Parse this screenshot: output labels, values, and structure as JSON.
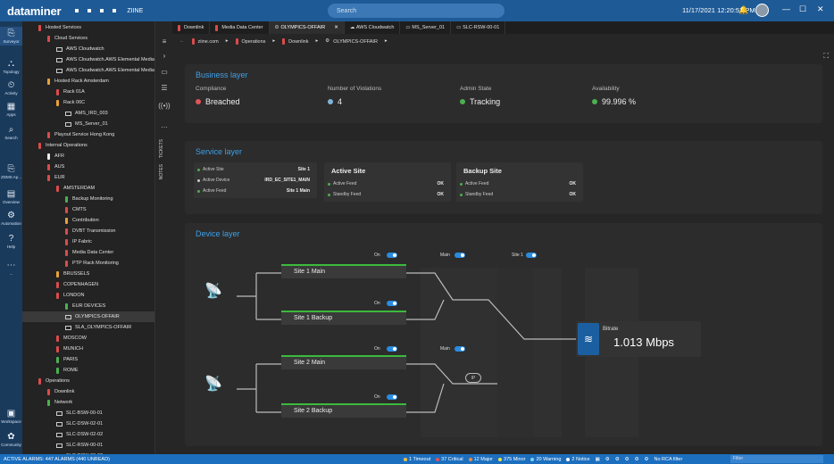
{
  "titlebar": {
    "logo": "dataminer",
    "app_name": "ZIINE",
    "search_placeholder": "Search",
    "clock": "11/17/2021 12:20:53 PM"
  },
  "leftbar": {
    "items": [
      {
        "label": "Surveyor",
        "icon": "surveyor-icon"
      },
      {
        "label": "Topology",
        "icon": "topology-icon"
      },
      {
        "label": "Activity",
        "icon": "activity-icon"
      },
      {
        "label": "Apps",
        "icon": "apps-icon"
      },
      {
        "label": "Search",
        "icon": "search-icon"
      },
      {
        "label": "ZDMS Ap...",
        "icon": "app-icon"
      },
      {
        "label": "Overview",
        "icon": "overview-icon"
      },
      {
        "label": "Automation",
        "icon": "automation-icon"
      },
      {
        "label": "Help",
        "icon": "help-icon"
      },
      {
        "label": "...",
        "icon": "more-icon"
      },
      {
        "label": "Workspace",
        "icon": "workspace-icon"
      },
      {
        "label": "Community",
        "icon": "community-icon"
      }
    ]
  },
  "tree": {
    "rows": [
      {
        "label": "Hosted Services",
        "indent": 1,
        "color": "#d94c4c",
        "kind": "view"
      },
      {
        "label": "Cloud Services",
        "indent": 2,
        "color": "#d94c4c",
        "kind": "view"
      },
      {
        "label": "AWS Cloudwatch",
        "indent": 3,
        "color": "",
        "kind": "element"
      },
      {
        "label": "AWS Cloudwatch.AWS Elemental Media",
        "indent": 3,
        "color": "",
        "kind": "element"
      },
      {
        "label": "AWS Cloudwatch.AWS Elemental Media",
        "indent": 3,
        "color": "",
        "kind": "element"
      },
      {
        "label": "Hosted Rack Amsterdam",
        "indent": 2,
        "color": "#e6a23c",
        "kind": "view"
      },
      {
        "label": "Rack 01A",
        "indent": 3,
        "color": "#d94c4c",
        "kind": "view"
      },
      {
        "label": "Rack 06C",
        "indent": 3,
        "color": "#e6a23c",
        "kind": "view"
      },
      {
        "label": "AMS_IRD_003",
        "indent": 4,
        "color": "",
        "kind": "element"
      },
      {
        "label": "MS_Server_01",
        "indent": 4,
        "color": "",
        "kind": "element"
      },
      {
        "label": "Playout Service Hong Kong",
        "indent": 2,
        "color": "#d94c4c",
        "kind": "view"
      },
      {
        "label": "Internal Operations",
        "indent": 1,
        "color": "#d94c4c",
        "kind": "view"
      },
      {
        "label": "AFR",
        "indent": 2,
        "color": "#eeeeee",
        "kind": "view"
      },
      {
        "label": "AUS",
        "indent": 2,
        "color": "#d94c4c",
        "kind": "view"
      },
      {
        "label": "EUR",
        "indent": 2,
        "color": "#d94c4c",
        "kind": "view"
      },
      {
        "label": "AMSTERDAM",
        "indent": 3,
        "color": "#d94c4c",
        "kind": "view"
      },
      {
        "label": "Backup Monitoring",
        "indent": 4,
        "color": "#4caf50",
        "kind": "view"
      },
      {
        "label": "CMTS",
        "indent": 4,
        "color": "#d94c4c",
        "kind": "view"
      },
      {
        "label": "Contribution",
        "indent": 4,
        "color": "#e6a23c",
        "kind": "view"
      },
      {
        "label": "DVBT Transmission",
        "indent": 4,
        "color": "#d94c4c",
        "kind": "view"
      },
      {
        "label": "IP Fabric",
        "indent": 4,
        "color": "#d94c4c",
        "kind": "view"
      },
      {
        "label": "Media Data Center",
        "indent": 4,
        "color": "#d94c4c",
        "kind": "view"
      },
      {
        "label": "PTP Rack Monitoring",
        "indent": 4,
        "color": "#d94c4c",
        "kind": "view"
      },
      {
        "label": "BRUSSELS",
        "indent": 3,
        "color": "#e6a23c",
        "kind": "view"
      },
      {
        "label": "COPENHAGEN",
        "indent": 3,
        "color": "#d94c4c",
        "kind": "view"
      },
      {
        "label": "LONDON",
        "indent": 3,
        "color": "#d94c4c",
        "kind": "view"
      },
      {
        "label": "EUR DEVICES",
        "indent": 4,
        "color": "#4caf50",
        "kind": "view"
      },
      {
        "label": "OLYMPICS-OFFAIR",
        "indent": 4,
        "color": "",
        "kind": "service",
        "selected": true
      },
      {
        "label": "SLA_OLYMPICS-OFFAIR",
        "indent": 4,
        "color": "",
        "kind": "service"
      },
      {
        "label": "MOSCOW",
        "indent": 3,
        "color": "#d94c4c",
        "kind": "view"
      },
      {
        "label": "MUNICH",
        "indent": 3,
        "color": "#d94c4c",
        "kind": "view"
      },
      {
        "label": "PARIS",
        "indent": 3,
        "color": "#4caf50",
        "kind": "view"
      },
      {
        "label": "ROME",
        "indent": 3,
        "color": "#4caf50",
        "kind": "view"
      },
      {
        "label": "Operations",
        "indent": 1,
        "color": "#d94c4c",
        "kind": "view"
      },
      {
        "label": "Downlink",
        "indent": 2,
        "color": "#d94c4c",
        "kind": "view"
      },
      {
        "label": "Network",
        "indent": 2,
        "color": "#4caf50",
        "kind": "view"
      },
      {
        "label": "SLC-BSW-00-01",
        "indent": 3,
        "color": "",
        "kind": "element"
      },
      {
        "label": "SLC-DSW-02-01",
        "indent": 3,
        "color": "",
        "kind": "element"
      },
      {
        "label": "SLC-DSW-02-02",
        "indent": 3,
        "color": "",
        "kind": "element"
      },
      {
        "label": "SLC-RSW-00-01",
        "indent": 3,
        "color": "",
        "kind": "element"
      },
      {
        "label": "SLC-RSW-00-02",
        "indent": 3,
        "color": "",
        "kind": "element"
      }
    ]
  },
  "toolcol": {
    "tickets": "TICKETS",
    "notes": "NOTES"
  },
  "tabs": [
    {
      "label": "Downlink",
      "active": false
    },
    {
      "label": "Media Data Center",
      "active": false
    },
    {
      "label": "OLYMPICS-OFFAIR",
      "active": true
    },
    {
      "label": "AWS Cloudwatch",
      "active": false
    },
    {
      "label": "MS_Server_01",
      "active": false
    },
    {
      "label": "SLC-RSW-00-01",
      "active": false
    }
  ],
  "breadcrumb": [
    "ziine.com",
    "Operations",
    "Downlink",
    "OLYMPICS-OFFAIR"
  ],
  "business": {
    "title": "Business layer",
    "cols": [
      {
        "label": "Compliance",
        "value": "Breached",
        "color": "#e05555"
      },
      {
        "label": "Number of Violations",
        "value": "4",
        "color": "#7fb3d9"
      },
      {
        "label": "Admin State",
        "value": "Tracking",
        "color": "#4caf50"
      },
      {
        "label": "Availability",
        "value": "99.996 %",
        "color": "#4caf50"
      }
    ]
  },
  "service": {
    "title": "Service layer",
    "left_rows": [
      {
        "label": "Active Site",
        "value": "Site 1",
        "color": "#4caf50"
      },
      {
        "label": "Active Device",
        "value": "IRD_EC_SITE1_MAIN",
        "color": "#cccccc"
      },
      {
        "label": "Active Feed",
        "value": "Site 1 Main",
        "color": "#4caf50"
      }
    ],
    "active_site": {
      "title": "Active Site",
      "rows": [
        {
          "label": "Active Feed",
          "value": "OK"
        },
        {
          "label": "Standby Feed",
          "value": "OK"
        }
      ]
    },
    "backup_site": {
      "title": "Backup Site",
      "rows": [
        {
          "label": "Active Feed",
          "value": "OK"
        },
        {
          "label": "Standby Feed",
          "value": "OK"
        }
      ]
    }
  },
  "device": {
    "title": "Device layer",
    "feeds": [
      "Site 1 Main",
      "Site 1 Backup",
      "Site 2 Main",
      "Site 2 Backup"
    ],
    "toggle_on": "On",
    "toggle_main": "Main",
    "toggle_site1": "Site 1",
    "ip_label": "IP",
    "bitrate_label": "Bitrate",
    "bitrate_value": "1.013 Mbps"
  },
  "statusbar": {
    "alarms": "ACTIVE ALARMS: 447 ALARMS (440 UNREAD)",
    "counters": [
      {
        "label": "1 Timeout",
        "color": "#f0c040"
      },
      {
        "label": "37 Critical",
        "color": "#e05555"
      },
      {
        "label": "12 Major",
        "color": "#f08a30"
      },
      {
        "label": "375 Minor",
        "color": "#f0e040"
      },
      {
        "label": "20 Warning",
        "color": "#80d0f0"
      },
      {
        "label": "2 Notice",
        "color": "#ffffff"
      }
    ],
    "filter": "No RCA filter",
    "filter_box": "Filter"
  }
}
